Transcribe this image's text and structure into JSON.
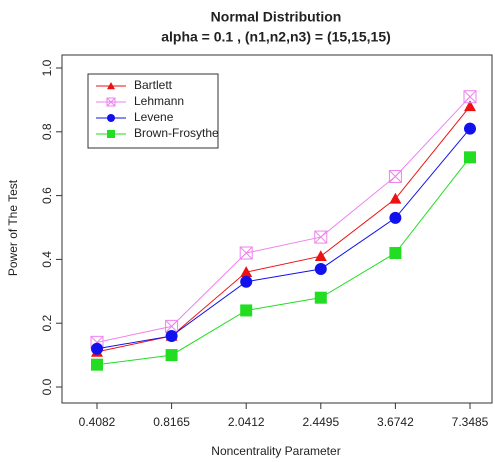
{
  "chart_data": {
    "type": "line",
    "title": "Normal Distribution",
    "subtitle": "alpha = 0.1 , (n1,n2,n3) = (15,15,15)",
    "x_label": "Noncentrality Parameter",
    "y_label": "Power of The Test",
    "categories": [
      "0.4082",
      "0.8165",
      "2.0412",
      "2.4495",
      "3.6742",
      "7.3485"
    ],
    "series": [
      {
        "name": "Bartlett",
        "color": "#ee1111",
        "marker": "triangle",
        "values": [
          0.11,
          0.16,
          0.36,
          0.41,
          0.59,
          0.88
        ]
      },
      {
        "name": "Lehmann",
        "color": "#ee82ee",
        "marker": "crossed-square",
        "values": [
          0.14,
          0.19,
          0.42,
          0.47,
          0.66,
          0.91
        ]
      },
      {
        "name": "Levene",
        "color": "#1111ee",
        "marker": "circle",
        "values": [
          0.12,
          0.16,
          0.33,
          0.37,
          0.53,
          0.81
        ]
      },
      {
        "name": "Brown-Frosythe",
        "color": "#22dd22",
        "marker": "square",
        "values": [
          0.07,
          0.1,
          0.24,
          0.28,
          0.42,
          0.72
        ]
      }
    ],
    "ylim": [
      0,
      1
    ],
    "yticks": [
      {
        "value": 0,
        "label": "0.0"
      },
      0.2,
      0.4,
      0.6,
      0.8,
      {
        "value": 1,
        "label": "1.0"
      }
    ],
    "legend": "top-left"
  }
}
